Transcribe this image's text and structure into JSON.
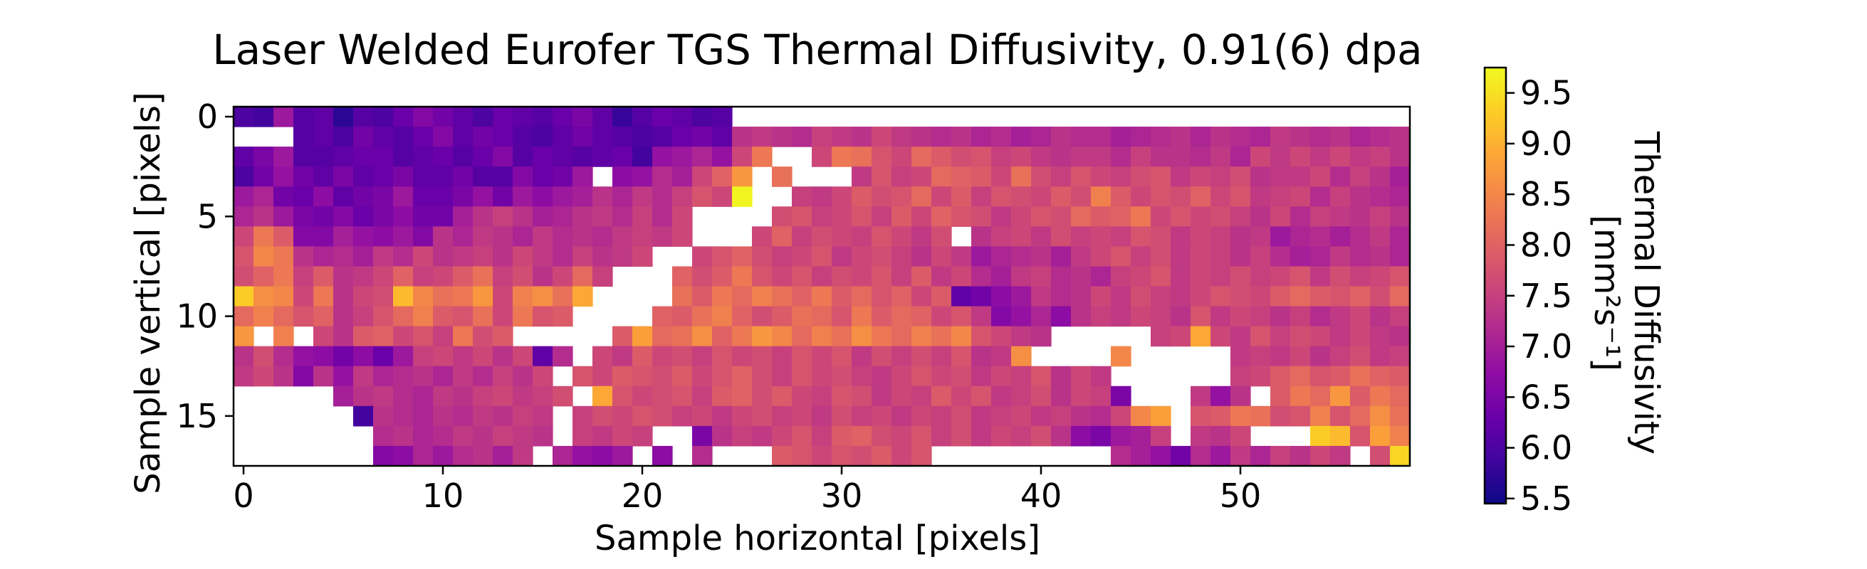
{
  "chart_data": {
    "type": "heatmap",
    "title": "Laser Welded Eurofer TGS Thermal Diffusivity, 0.91(6) dpa",
    "xlabel": "Sample horizontal [pixels]",
    "ylabel": "Sample vertical [pixels]",
    "colorbar": {
      "label_line1": "Thermal Diffusivity",
      "label_line2": "[mm²s⁻¹]",
      "range": [
        5.45,
        9.75
      ],
      "ticks": [
        5.5,
        6.0,
        6.5,
        7.0,
        7.5,
        8.0,
        8.5,
        9.0,
        9.5
      ],
      "tick_labels": [
        "5.5",
        "6.0",
        "6.5",
        "7.0",
        "7.5",
        "8.0",
        "8.5",
        "9.0",
        "9.5"
      ]
    },
    "colormap": "plasma",
    "xlim": [
      -0.5,
      58.5
    ],
    "ylim": [
      17.5,
      -0.5
    ],
    "x_ticks": [
      0,
      10,
      20,
      30,
      40,
      50
    ],
    "x_tick_labels": [
      "0",
      "10",
      "20",
      "30",
      "40",
      "50"
    ],
    "y_ticks": [
      0,
      5,
      10,
      15
    ],
    "y_tick_labels": [
      "0",
      "5",
      "10",
      "15"
    ],
    "n_cols": 59,
    "n_rows": 18,
    "value_rows": [
      "6.0 5.9 6.9 6.1 6.2 5.7 6.1 6.0 6.3 6.6 6.4 6.2 6.0 6.3 6.2 6.1 6.3 6.5 6.2 5.8 6.1 6.3 6.2 6.0 6.1 - - - - - - - - - - - - - - - - - - - - - - - - - - - - - - - - - - -",
      "- - - 6.1 6.2 6.0 6.4 6.2 6.1 6.3 6.6 6.2 6.4 6.3 6.1 6.0 6.2 6.4 6.2 6.1 6.0 6.1 6.3 6.4 6.2 7.3 7.4 7.3 7.2 7.5 7.4 7.3 7.6 7.4 7.3 7.2 7.3 7.1 7.2 7.0 7.1 7.3 7.2 7.2 7.0 7.1 7.2 7.3 7.1 7.3 7.2 7.1 7.4 7.3 7.2 7.3 7.1 7.2 7.3",
      "6.2 6.5 6.9 6.1 6.1 6.2 6.3 6.3 6.1 6.2 6.3 6.1 6.3 6.6 6.1 6.3 6.2 6.1 6.2 6.3 5.9 6.8 6.9 7.1 6.8 7.6 8.3 - - 7.6 8.3 8.2 7.8 7.6 8.1 7.9 7.7 7.8 7.5 7.6 7.4 7.3 7.4 7.4 7.2 7.5 7.3 7.3 7.2 7.4 7.1 7.6 7.4 7.6 7.4 7.6 7.4 7.5 7.3",
      "6.0 6.4 6.8 6.4 6.2 6.5 6.2 6.3 6.5 6.2 6.2 6.4 6.1 6.1 6.6 6.3 6.4 6.9 - 6.7 6.8 7.2 7.0 7.6 8.0 8.7 - 8.2 - - - 7.4 7.8 7.5 7.6 8.1 8.0 7.9 7.6 8.2 7.7 7.5 7.8 7.6 7.5 7.7 7.8 7.4 7.6 7.5 7.7 7.3 7.4 7.4 7.6 7.2 7.5 7.3 7.0",
      "6.9 7.1 6.4 6.3 6.7 6.2 6.4 6.5 6.9 6.3 6.3 6.5 6.8 6.4 6.9 6.7 6.9 7.0 7.3 7.1 7.4 7.2 7.5 7.8 7.6 9.7 - - 7.5 7.4 7.6 7.9 7.7 7.8 8.1 7.6 7.9 7.5 7.8 7.7 7.6 7.9 7.7 8.4 7.9 7.6 7.8 7.7 8.0 7.6 7.8 7.4 7.5 7.6 7.2 7.5 7.3 7.2 7.1",
      "7.1 7.3 6.9 6.5 6.4 6.6 6.3 6.5 6.7 6.4 6.4 7.0 7.3 7.5 7.3 7.0 7.1 7.3 7.4 7.2 7.5 7.2 7.6 - - - - 7.7 7.8 7.5 7.6 7.8 7.5 7.9 7.6 8.0 7.8 7.7 7.4 7.6 7.8 7.7 8.1 7.9 8.0 8.3 7.6 7.8 7.6 7.7 7.5 7.3 7.6 7.2 7.5 7.4 7.3 7.5 7.3",
      "7.6 8.3 7.9 6.6 6.6 7.0 6.8 6.7 6.9 6.6 7.3 7.1 7.4 7.3 7.1 7.4 7.2 7.3 7.2 7.4 7.5 7.4 7.6 - - - 7.6 8.0 7.5 7.7 7.6 7.5 7.8 7.6 7.4 7.7 - 7.3 7.5 7.6 7.4 7.7 7.5 7.6 7.5 7.8 7.7 7.4 7.6 7.5 7.3 7.4 6.9 7.1 7.2 7.0 7.2 7.4 7.1",
      "7.8 8.5 8.3 7.3 7.1 7.2 7.0 7.4 7.2 7.6 7.3 7.4 7.5 7.3 7.6 7.4 7.2 7.5 7.3 7.4 7.6 - - 7.6 7.8 8.0 7.7 7.5 7.6 7.8 7.4 7.6 7.7 7.5 7.3 7.6 7.4 6.9 7.1 7.2 7.3 7.0 7.4 7.6 7.8 7.5 7.7 7.4 7.6 7.5 7.3 7.5 7.2 7.0 7.1 7.4 7.2 7.3 7.1",
      "7.7 8.0 8.3 7.5 7.9 7.3 7.4 7.6 8.0 7.5 7.6 7.9 8.2 7.5 7.7 7.3 7.6 8.1 7.5 - - - 8.0 7.7 7.9 8.3 7.8 7.6 7.8 7.5 7.7 7.6 7.8 7.5 7.9 7.4 7.6 7.2 7.0 7.4 7.5 7.2 7.3 7.1 7.5 7.6 7.8 7.4 7.6 7.5 7.7 7.5 7.6 7.8 7.4 7.7 7.5 7.6 7.8",
      "9.3 8.6 8.5 7.6 8.3 7.3 7.6 7.7 9.1 8.5 8.2 8.3 8.7 7.6 8.4 8.6 8.2 8.9 - - - - 8.2 7.9 8.3 8.1 8.4 8.2 8.0 8.3 7.9 8.1 7.8 8.0 7.6 7.9 6.2 6.4 6.7 6.9 7.4 7.2 7.3 7.6 7.4 7.7 7.5 7.4 7.6 7.8 7.7 7.6 7.9 8.1 7.9 7.8 8.0 7.7 8.1",
      "8.1 8.4 8.1 7.8 8.0 7.3 7.5 7.8 8.1 8.4 7.9 7.8 8.2 7.6 8.3 7.8 7.9 - - - - 8.0 7.9 8.2 8.4 8.0 7.7 7.9 8.2 8.1 7.8 8.3 7.9 8.1 8.0 7.6 7.8 7.4 6.6 6.8 7.1 6.7 7.3 7.5 7.4 7.6 7.5 7.3 7.8 7.4 7.6 7.5 7.3 7.5 7.2 7.4 7.6 7.3 7.5",
      "8.7 - 8.4 - 7.6 7.3 7.9 8.0 7.6 7.8 7.5 8.3 7.7 7.9 - - - - - 7.9 8.8 8.1 8.2 8.6 8.0 8.3 8.7 8.5 8.1 8.4 8.2 8.6 8.3 8.1 8.4 8.2 8.5 7.8 7.6 7.4 7.3 - - - - - 7.5 7.6 8.9 7.6 7.4 7.8 7.5 7.7 7.6 7.4 7.6 7.4 7.3",
      "7.3 7.7 7.2 6.8 6.7 6.4 6.7 6.3 6.9 7.5 7.6 7.4 7.6 7.3 7.6 6.2 7.2 - 7.6 7.4 7.9 7.6 7.7 7.5 7.8 7.6 7.7 7.5 7.8 7.6 7.8 7.4 7.7 7.5 7.7 7.5 7.8 7.3 7.4 8.6 - - - - 8.5 - - - - - 7.4 7.5 7.4 7.6 7.3 7.5 7.7 7.4 7.5",
      "7.4 7.6 7.3 6.6 7.3 6.8 7.4 7.1 7.2 7.3 7.1 7.4 7.2 7.5 7.3 7.6 - 7.8 7.6 7.9 7.8 7.7 7.9 7.6 7.8 8.0 7.7 7.5 7.8 7.6 7.7 7.5 7.4 7.6 7.8 7.6 7.7 7.4 7.6 7.5 7.8 7.3 7.6 7.4 - - - - - - 7.5 7.6 7.9 8.1 7.8 7.9 8.2 8.0 7.9",
      "- - - - - 7.0 7.3 7.4 7.2 7.1 7.4 7.3 7.5 7.6 7.4 7.5 7.7 - 8.9 7.8 7.6 7.7 7.8 7.5 7.9 8.0 7.7 7.9 7.6 7.5 7.8 7.7 7.4 7.6 7.5 7.9 7.6 7.8 7.4 7.5 7.7 7.3 7.6 7.5 6.5 - - - 7.4 6.8 7.3 - 7.9 8.3 8.1 8.7 7.9 8.3 8.1",
      "- - - - - - 5.9 7.3 7.2 7.1 7.3 7.2 7.4 7.3 7.5 7.4 - 7.5 7.7 7.6 7.8 7.7 7.5 7.6 7.4 7.6 7.7 7.5 7.6 7.4 7.7 7.5 7.6 7.4 7.6 7.5 7.7 7.4 7.5 7.6 7.4 7.5 7.3 7.2 7.6 8.5 8.8 - 7.8 7.9 8.3 8.2 7.7 7.8 8.4 7.8 8.1 8.6 8.2",
      "- - - - - - - 7.2 7.3 7.1 7.2 7.4 7.3 7.5 7.4 7.3 - 7.5 7.4 7.6 7.5 - - 6.5 7.3 7.5 7.4 7.6 7.8 7.5 7.9 8.0 7.7 7.6 7.8 7.5 7.7 7.4 7.6 7.5 7.7 7.3 6.7 6.5 6.9 7.0 7.5 - 7.4 7.3 7.6 - - - 9.3 9.1 7.8 8.8 8.4",
      "- - - - - - - 6.6 6.7 7.1 6.9 7.2 7.3 7.0 7.4 - 7.1 6.8 6.7 6.9 - 6.7 - 7.2 - - - 7.9 7.8 7.6 7.8 7.7 7.9 7.6 7.8 - - - - - - - - - 7.2 7.0 6.8 6.4 7.2 6.9 7.4 7.1 7.5 7.3 7.6 7.4 - 7.7 9.4"
    ]
  }
}
